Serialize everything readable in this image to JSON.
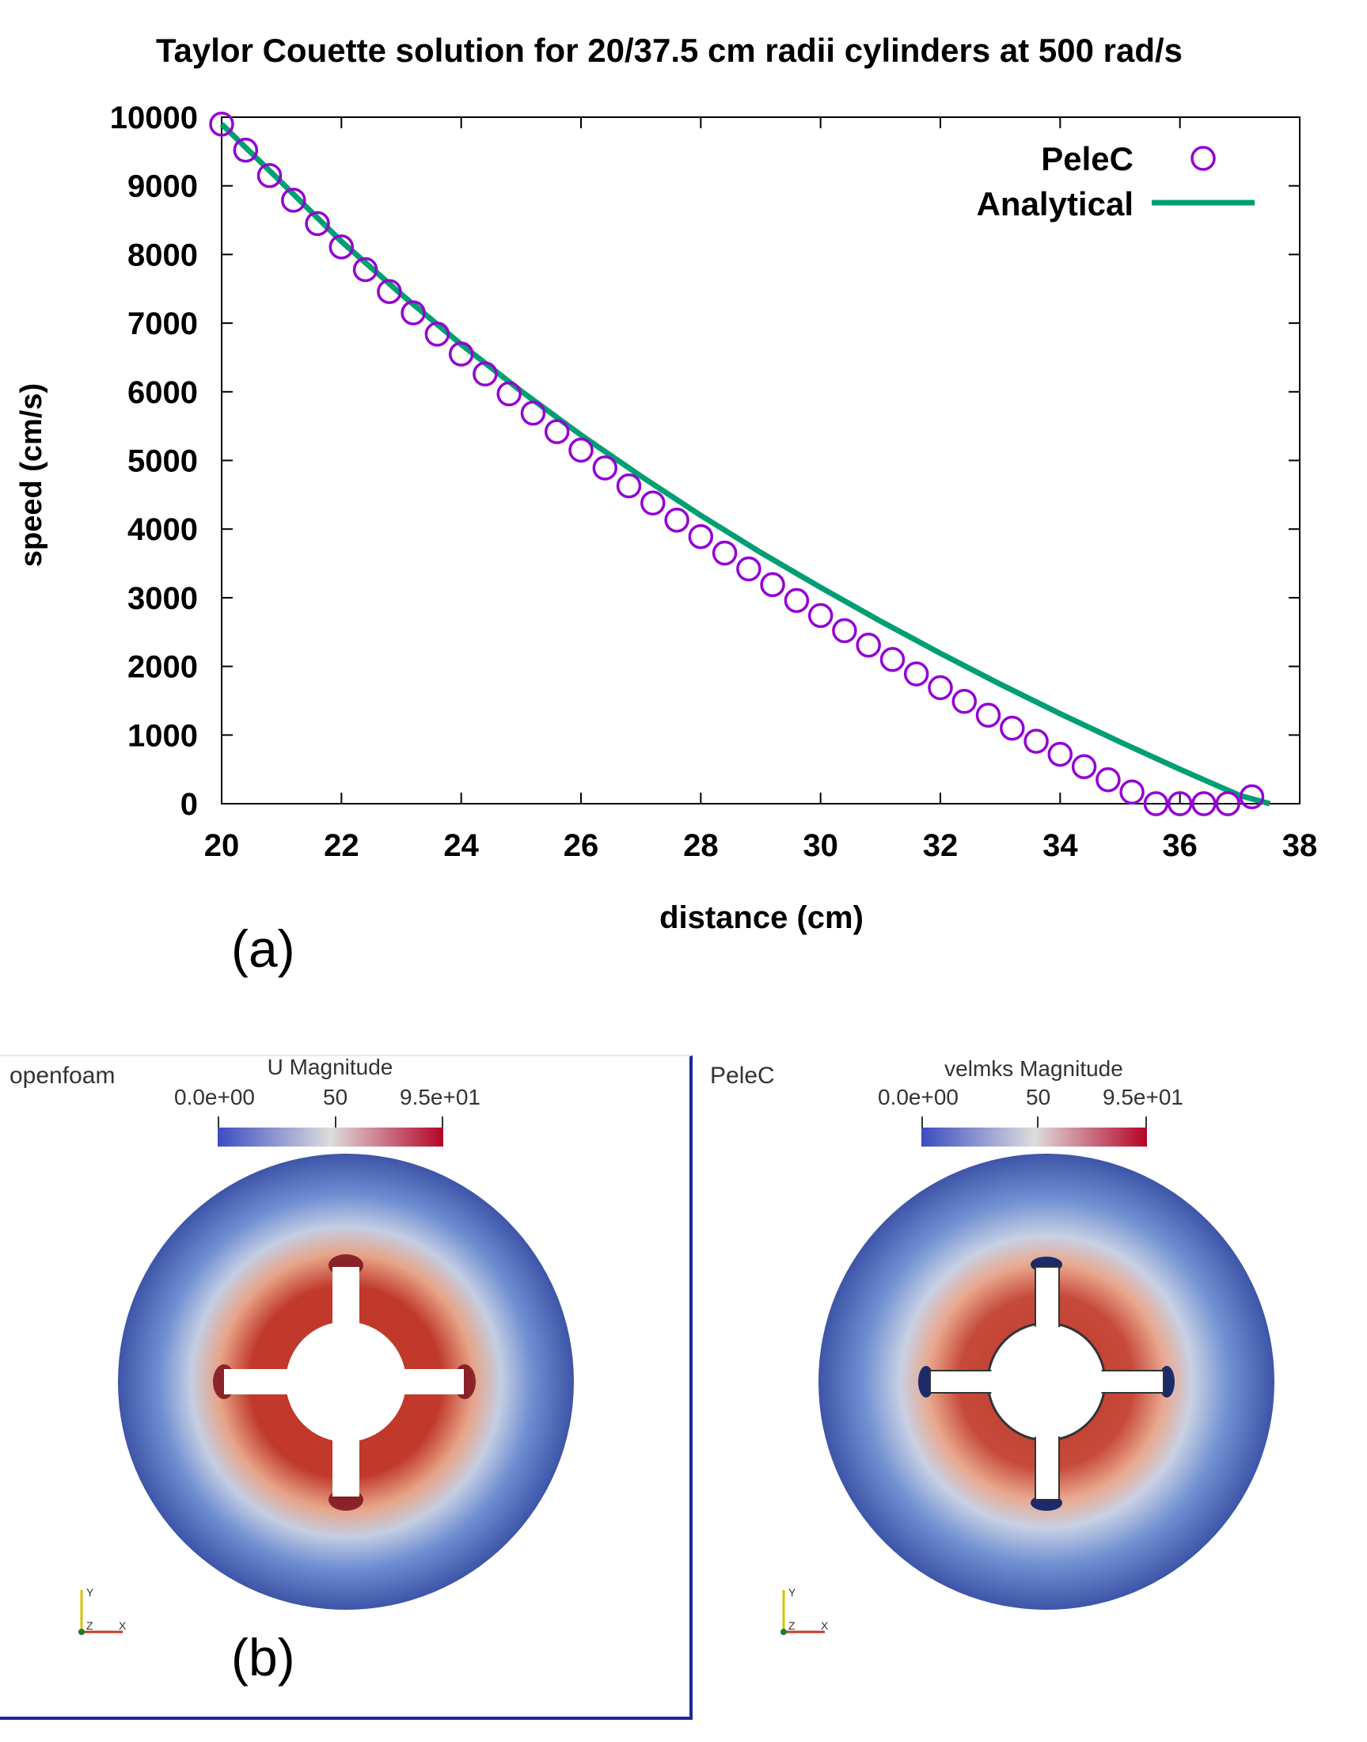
{
  "chart_data": {
    "type": "line",
    "title": "Taylor Couette solution for 20/37.5 cm radii cylinders at 500 rad/s",
    "xlabel": "distance (cm)",
    "ylabel": "speed (cm/s)",
    "xlim": [
      20,
      38
    ],
    "ylim": [
      0,
      10000
    ],
    "xticks": [
      "20",
      "22",
      "24",
      "26",
      "28",
      "30",
      "32",
      "34",
      "36",
      "38"
    ],
    "yticks": [
      "0",
      "1000",
      "2000",
      "3000",
      "4000",
      "5000",
      "6000",
      "7000",
      "8000",
      "9000",
      "10000"
    ],
    "grid": false,
    "legend_position": "top-right",
    "series": [
      {
        "name": "PeleC",
        "style": "circles",
        "color": "#9400d3",
        "x": [
          20.0,
          20.4,
          20.8,
          21.2,
          21.6,
          22.0,
          22.4,
          22.8,
          23.2,
          23.6,
          24.0,
          24.4,
          24.8,
          25.2,
          25.6,
          26.0,
          26.4,
          26.8,
          27.2,
          27.6,
          28.0,
          28.4,
          28.8,
          29.2,
          29.6,
          30.0,
          30.4,
          30.8,
          31.2,
          31.6,
          32.0,
          32.4,
          32.8,
          33.2,
          33.6,
          34.0,
          34.4,
          34.8,
          35.2,
          35.6,
          36.0,
          36.4,
          36.8,
          37.2
        ],
        "y": [
          9900,
          9520,
          9150,
          8790,
          8450,
          8110,
          7780,
          7460,
          7150,
          6840,
          6550,
          6260,
          5970,
          5690,
          5420,
          5150,
          4890,
          4630,
          4380,
          4130,
          3890,
          3650,
          3420,
          3190,
          2960,
          2740,
          2520,
          2310,
          2100,
          1890,
          1690,
          1490,
          1290,
          1100,
          910,
          720,
          540,
          350,
          170,
          0,
          0,
          0,
          0,
          100
        ]
      },
      {
        "name": "Analytical",
        "style": "line",
        "color": "#009e73",
        "x": [
          20.0,
          21.0,
          22.0,
          23.0,
          24.0,
          25.0,
          26.0,
          27.0,
          28.0,
          29.0,
          30.0,
          31.0,
          32.0,
          33.0,
          34.0,
          35.0,
          36.0,
          37.0,
          37.5
        ],
        "y": [
          9900,
          9050,
          8190,
          7420,
          6690,
          6010,
          5370,
          4770,
          4200,
          3660,
          3150,
          2660,
          2190,
          1740,
          1310,
          900,
          500,
          120,
          0
        ]
      }
    ]
  },
  "panel_a_label": "(a)",
  "panel_b_label": "(b)",
  "viewports": [
    {
      "title": "openfoam",
      "colorbar_title": "U Magnitude",
      "tick_min": "0.0e+00",
      "tick_mid": "50",
      "tick_max": "9.5e+01"
    },
    {
      "title": "PeleC",
      "colorbar_title": "velmks Magnitude",
      "tick_min": "0.0e+00",
      "tick_mid": "50",
      "tick_max": "9.5e+01"
    }
  ],
  "axes_triad": {
    "x": "X",
    "y": "Y",
    "z": "Z"
  },
  "colors": {
    "cool": "#3b4cc0",
    "neutral": "#dddddd",
    "warm": "#b40426",
    "viewport_border": "#1a2a9a"
  }
}
